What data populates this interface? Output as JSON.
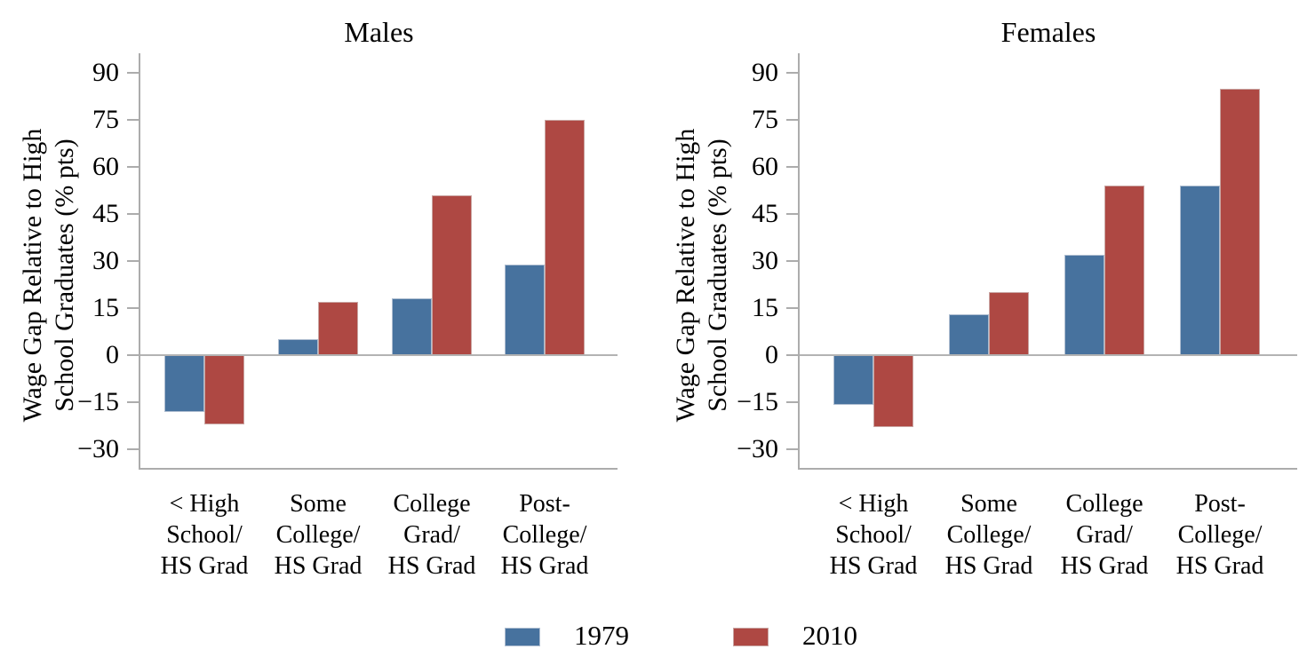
{
  "chart_data": {
    "type": "bar",
    "figure_title": "",
    "panels": [
      {
        "title": "Males",
        "series": [
          {
            "name": "1979",
            "values": [
              -18,
              5,
              18,
              29
            ]
          },
          {
            "name": "2010",
            "values": [
              -22,
              17,
              51,
              75
            ]
          }
        ]
      },
      {
        "title": "Females",
        "series": [
          {
            "name": "1979",
            "values": [
              -16,
              13,
              32,
              54
            ]
          },
          {
            "name": "2010",
            "values": [
              -23,
              20,
              54,
              85
            ]
          }
        ]
      }
    ],
    "categories": [
      [
        "< High",
        "School/",
        "HS Grad"
      ],
      [
        "Some",
        "College/",
        "HS Grad"
      ],
      [
        "College",
        "Grad/",
        "HS Grad"
      ],
      [
        "Post-",
        "College/",
        "HS Grad"
      ]
    ],
    "ylabel": "Wage Gap Relative to High School Graduates (% pts)",
    "ylabel_lines": [
      "Wage Gap Relative to High",
      "School Graduates (% pts)"
    ],
    "yticks": [
      90,
      75,
      60,
      45,
      30,
      15,
      0,
      -15,
      -30
    ],
    "ytick_labels": [
      "90",
      "75",
      "60",
      "45",
      "30",
      "15",
      "0",
      "−15",
      "−30"
    ],
    "ylim": [
      -35.5,
      96
    ],
    "grid": false,
    "legend": [
      "1979",
      "2010"
    ],
    "legend_position": "bottom",
    "colors": {
      "series": [
        {
          "name": "1979",
          "fill": "#47729E",
          "stroke": "#AEBDD0"
        },
        {
          "name": "2010",
          "fill": "#AE4843",
          "stroke": "#C9A5A2"
        }
      ],
      "axis": "#ACACAC",
      "text": "#000000",
      "background": "#FFFFFF"
    }
  }
}
